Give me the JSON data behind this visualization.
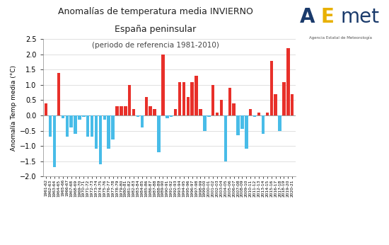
{
  "title_line1": "Anomalías de temperatura media INVIERNO",
  "title_line2": "España peninsular",
  "title_line3": "(periodo de referencia 1981-2010)",
  "ylabel": "Anomalía Temp media (°C)",
  "ylim": [
    -2.0,
    2.5
  ],
  "yticks": [
    -2.0,
    -1.5,
    -1.0,
    -0.5,
    0.0,
    0.5,
    1.0,
    1.5,
    2.0,
    2.5
  ],
  "years": [
    "1961-62",
    "1962-63",
    "1963-64",
    "1964-65",
    "1965-66",
    "1966-67",
    "1967-68",
    "1968-69",
    "1969-70",
    "1970-71",
    "1971-72",
    "1972-73",
    "1973-74",
    "1974-75",
    "1975-76",
    "1976-77",
    "1977-78",
    "1978-79",
    "1979-80",
    "1980-81",
    "1981-82",
    "1982-83",
    "1983-84",
    "1984-85",
    "1985-86",
    "1986-87",
    "1987-88",
    "1988-89",
    "1989-90",
    "1990-91",
    "1991-92",
    "1992-93",
    "1993-94",
    "1994-95",
    "1995-96",
    "1996-97",
    "1997-98",
    "1998-99",
    "1999-00",
    "2000-01",
    "2001-02",
    "2002-03",
    "2003-04",
    "2004-05",
    "2005-06",
    "2006-07",
    "2007-08",
    "2008-09",
    "2009-10",
    "2010-11",
    "2011-12",
    "2012-13",
    "2013-14",
    "2014-15",
    "2015-16",
    "2016-17",
    "2017-18",
    "2018-19",
    "2019-20",
    "2020-21"
  ],
  "values": [
    0.4,
    -0.7,
    -1.7,
    1.4,
    -0.1,
    -0.7,
    -0.4,
    -0.6,
    -0.15,
    -0.05,
    -0.7,
    -0.7,
    -1.1,
    -1.6,
    -0.15,
    -1.1,
    -0.8,
    0.3,
    0.3,
    0.3,
    1.0,
    0.2,
    -0.05,
    -0.4,
    0.6,
    0.3,
    0.2,
    -1.2,
    2.0,
    -0.1,
    -0.05,
    0.2,
    1.1,
    1.1,
    0.6,
    1.1,
    1.3,
    0.2,
    -0.5,
    -0.05,
    1.0,
    0.1,
    0.5,
    -1.5,
    0.9,
    0.4,
    -0.65,
    -0.45,
    -1.1,
    0.2,
    -0.05,
    0.1,
    -0.6,
    0.1,
    1.8,
    0.7,
    -0.5,
    1.1,
    2.2,
    0.7
  ],
  "warm_color": "#e8302a",
  "cold_color": "#48bce8",
  "background_color": "#ffffff",
  "grid_color": "#d3d3d3",
  "bar_width": 0.75,
  "title_fontsize": 9,
  "subtitle_fontsize": 9,
  "subsubtitle_fontsize": 7.5,
  "ylabel_fontsize": 6.5,
  "ytick_fontsize": 7,
  "xtick_fontsize": 4.2,
  "logo_text1": "A",
  "logo_text2": "E",
  "logo_text3": "met",
  "logo_sub": "Agencia Estatal de Meteorología"
}
